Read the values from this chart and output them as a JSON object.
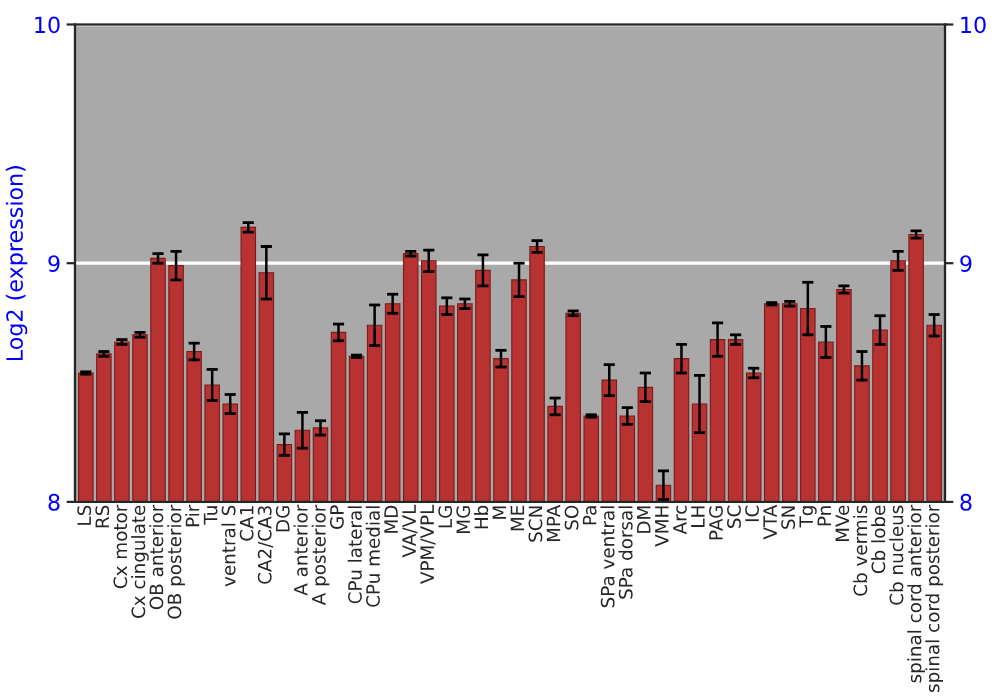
{
  "chart_data": {
    "type": "bar",
    "ylabel": "Log2 (expression)",
    "categories": [
      "LS",
      "RS",
      "Cx motor",
      "Cx cingulate",
      "OB anterior",
      "OB posterior",
      "Pir",
      "Tu",
      "ventral S",
      "CA1",
      "CA2/CA3",
      "DG",
      "A anterior",
      "A posterior",
      "GP",
      "CPu lateral",
      "CPu medial",
      "MD",
      "VA/VL",
      "VPM/VPL",
      "LG",
      "MG",
      "Hb",
      "M",
      "ME",
      "SCN",
      "MPA",
      "SO",
      "Pa",
      "SPa ventral",
      "SPa dorsal",
      "DM",
      "VMH",
      "Arc",
      "LH",
      "PAG",
      "SC",
      "IC",
      "VTA",
      "SN",
      "Tg",
      "Pn",
      "MVe",
      "Cb vermis",
      "Cb lobe",
      "Cb nucleus",
      "spinal cord anterior",
      "spinal cord posterior"
    ],
    "values": [
      8.54,
      8.62,
      8.67,
      8.7,
      9.02,
      8.99,
      8.63,
      8.49,
      8.41,
      9.15,
      8.96,
      8.24,
      8.3,
      8.31,
      8.71,
      8.61,
      8.74,
      8.83,
      9.04,
      9.01,
      8.82,
      8.83,
      8.97,
      8.6,
      8.93,
      9.07,
      8.4,
      8.79,
      8.36,
      8.51,
      8.36,
      8.48,
      8.07,
      8.6,
      8.41,
      8.68,
      8.68,
      8.54,
      8.83,
      8.83,
      8.81,
      8.67,
      8.89,
      8.57,
      8.72,
      9.01,
      9.12,
      8.74
    ],
    "errors": [
      0.005,
      0.01,
      0.01,
      0.01,
      0.02,
      0.06,
      0.035,
      0.065,
      0.04,
      0.02,
      0.11,
      0.045,
      0.075,
      0.03,
      0.035,
      0.005,
      0.085,
      0.04,
      0.01,
      0.045,
      0.035,
      0.02,
      0.065,
      0.035,
      0.07,
      0.025,
      0.035,
      0.01,
      0.005,
      0.065,
      0.035,
      0.06,
      0.06,
      0.06,
      0.12,
      0.07,
      0.02,
      0.02,
      0.005,
      0.01,
      0.11,
      0.065,
      0.015,
      0.06,
      0.06,
      0.04,
      0.015,
      0.045
    ],
    "color": "#b83232",
    "ylim": [
      8,
      10
    ],
    "yticks": [
      8,
      9,
      10
    ],
    "y2lim": [
      8,
      10
    ],
    "y2ticks": [
      8,
      9,
      10
    ],
    "grid": "y"
  }
}
